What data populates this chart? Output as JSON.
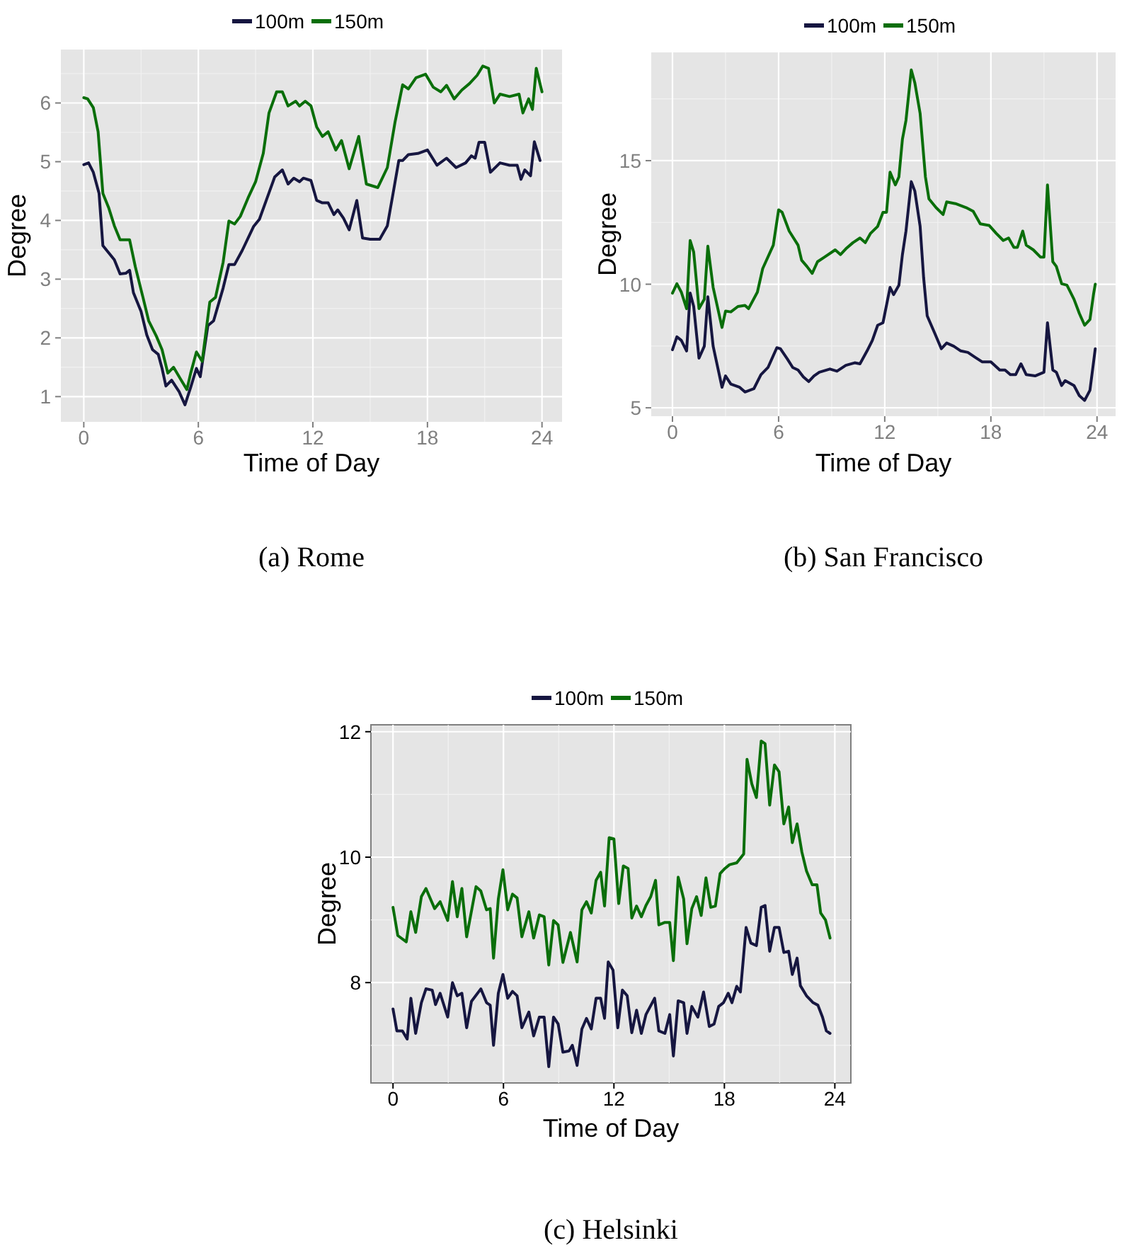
{
  "chart_data": [
    {
      "type": "line",
      "xlabel": "Time of Day",
      "ylabel": "Degree",
      "xlim": [
        -1.2,
        25.05
      ],
      "ylim": [
        0.57,
        6.91
      ],
      "xticks": [
        0,
        6,
        12,
        18,
        24
      ],
      "yticks": [
        1,
        2,
        3,
        4,
        5,
        6
      ],
      "grid": true,
      "legend": "top",
      "annotations": [
        "(a)  Rome"
      ],
      "series": [
        {
          "name": "100m",
          "color": "#161640",
          "x": [
            0,
            0.25,
            0.5,
            0.8,
            1,
            1.3,
            1.6,
            1.9,
            2.2,
            2.4,
            2.6,
            3,
            3.3,
            3.6,
            3.9,
            4.1,
            4.3,
            4.6,
            5,
            5.3,
            5.6,
            5.9,
            6.1,
            6.5,
            6.8,
            7.3,
            7.6,
            7.9,
            8.3,
            8.9,
            9.2,
            9.6,
            10,
            10.4,
            10.7,
            11,
            11.3,
            11.5,
            11.9,
            12.2,
            12.5,
            12.8,
            13.1,
            13.3,
            13.6,
            13.9,
            14.3,
            14.6,
            15,
            15.5,
            15.9,
            16.2,
            16.5,
            16.7,
            17,
            17.5,
            18,
            18.5,
            19,
            19.5,
            20,
            20.3,
            20.5,
            20.7,
            21,
            21.3,
            21.8,
            22.3,
            22.7,
            22.9,
            23.1,
            23.4,
            23.6,
            23.9
          ],
          "values": [
            4.95,
            4.98,
            4.82,
            4.46,
            3.57,
            3.45,
            3.33,
            3.09,
            3.1,
            3.15,
            2.77,
            2.45,
            2.05,
            1.8,
            1.72,
            1.48,
            1.18,
            1.28,
            1.08,
            0.86,
            1.16,
            1.48,
            1.34,
            2.21,
            2.29,
            2.85,
            3.25,
            3.25,
            3.49,
            3.9,
            4.02,
            4.38,
            4.74,
            4.86,
            4.62,
            4.72,
            4.66,
            4.72,
            4.68,
            4.34,
            4.3,
            4.3,
            4.1,
            4.18,
            4.04,
            3.84,
            4.34,
            3.7,
            3.68,
            3.68,
            3.91,
            4.46,
            5.02,
            5.02,
            5.12,
            5.14,
            5.2,
            4.94,
            5.06,
            4.9,
            4.98,
            5.1,
            5.06,
            5.33,
            5.33,
            4.82,
            4.98,
            4.94,
            4.94,
            4.7,
            4.86,
            4.76,
            5.34,
            5.02
          ]
        },
        {
          "name": "150m",
          "color": "#0a6e0a",
          "x": [
            0,
            0.2,
            0.5,
            0.75,
            1,
            1.3,
            1.6,
            1.9,
            2.4,
            2.7,
            3.1,
            3.4,
            3.8,
            4.1,
            4.4,
            4.7,
            5.1,
            5.4,
            5.6,
            5.9,
            6.2,
            6.6,
            6.9,
            7.3,
            7.6,
            7.9,
            8.2,
            8.6,
            9,
            9.4,
            9.7,
            10.1,
            10.4,
            10.7,
            11.1,
            11.3,
            11.6,
            11.9,
            12.2,
            12.5,
            12.8,
            13.2,
            13.5,
            13.9,
            14.4,
            14.8,
            15.4,
            15.9,
            16.3,
            16.7,
            17,
            17.4,
            17.9,
            18.3,
            18.7,
            19,
            19.4,
            19.8,
            20.2,
            20.6,
            20.9,
            21.2,
            21.5,
            21.8,
            22.3,
            22.8,
            23,
            23.3,
            23.5,
            23.7,
            24
          ],
          "values": [
            6.09,
            6.07,
            5.92,
            5.51,
            4.46,
            4.22,
            3.91,
            3.67,
            3.67,
            3.21,
            2.69,
            2.29,
            2.03,
            1.8,
            1.4,
            1.5,
            1.28,
            1.12,
            1.4,
            1.76,
            1.6,
            2.61,
            2.69,
            3.29,
            3.99,
            3.94,
            4.07,
            4.38,
            4.66,
            5.14,
            5.83,
            6.19,
            6.19,
            5.95,
            6.03,
            5.95,
            6.03,
            5.95,
            5.59,
            5.43,
            5.51,
            5.2,
            5.36,
            4.88,
            5.43,
            4.62,
            4.56,
            4.9,
            5.67,
            6.31,
            6.24,
            6.43,
            6.49,
            6.27,
            6.19,
            6.3,
            6.07,
            6.22,
            6.33,
            6.47,
            6.63,
            6.59,
            6.0,
            6.15,
            6.11,
            6.15,
            5.83,
            6.07,
            5.89,
            6.59,
            6.19
          ]
        }
      ]
    },
    {
      "type": "line",
      "xlabel": "Time of Day",
      "ylabel": "Degree",
      "xlim": [
        -1.2,
        25.05
      ],
      "ylim": [
        4.66,
        19.38
      ],
      "xticks": [
        0,
        6,
        12,
        18,
        24
      ],
      "yticks": [
        5,
        10,
        15
      ],
      "grid": true,
      "legend": "top",
      "annotations": [
        "(b)  San Francisco"
      ],
      "series": [
        {
          "name": "100m",
          "color": "#161640",
          "x": [
            0,
            0.25,
            0.5,
            0.8,
            1,
            1.2,
            1.5,
            1.8,
            2,
            2.3,
            2.8,
            3,
            3.3,
            3.8,
            4.1,
            4.6,
            5,
            5.4,
            5.9,
            6.1,
            6.5,
            6.8,
            7.1,
            7.4,
            7.7,
            8,
            8.3,
            8.9,
            9.3,
            9.8,
            10.3,
            10.6,
            11,
            11.3,
            11.6,
            11.9,
            12.3,
            12.5,
            12.8,
            13,
            13.2,
            13.5,
            13.7,
            14,
            14.2,
            14.4,
            14.8,
            15.2,
            15.5,
            15.9,
            16.3,
            16.7,
            17.1,
            17.5,
            18,
            18.5,
            18.8,
            19.1,
            19.4,
            19.7,
            20,
            20.5,
            21,
            21.2,
            21.5,
            21.7,
            22,
            22.2,
            22.7,
            23,
            23.3,
            23.6,
            23.8,
            23.9
          ],
          "values": [
            7.35,
            7.87,
            7.73,
            7.3,
            9.64,
            9.1,
            7.01,
            7.49,
            9.49,
            7.49,
            5.83,
            6.29,
            5.96,
            5.83,
            5.64,
            5.77,
            6.34,
            6.63,
            7.43,
            7.39,
            6.97,
            6.63,
            6.53,
            6.25,
            6.06,
            6.29,
            6.44,
            6.57,
            6.48,
            6.72,
            6.82,
            6.78,
            7.3,
            7.73,
            8.34,
            8.44,
            9.87,
            9.58,
            9.96,
            11.2,
            12.15,
            14.15,
            13.77,
            12.34,
            10.25,
            8.72,
            8.06,
            7.39,
            7.62,
            7.49,
            7.3,
            7.24,
            7.05,
            6.86,
            6.86,
            6.53,
            6.53,
            6.34,
            6.34,
            6.78,
            6.34,
            6.29,
            6.44,
            8.44,
            6.53,
            6.44,
            5.9,
            6.1,
            5.9,
            5.49,
            5.3,
            5.71,
            6.82,
            7.39
          ]
        },
        {
          "name": "150m",
          "color": "#0a6e0a",
          "x": [
            0,
            0.25,
            0.5,
            0.8,
            1,
            1.2,
            1.5,
            1.8,
            2,
            2.3,
            2.8,
            3,
            3.3,
            3.7,
            4.1,
            4.3,
            4.8,
            5.1,
            5.7,
            6,
            6.2,
            6.6,
            7.1,
            7.3,
            7.6,
            7.9,
            8.2,
            8.6,
            9.2,
            9.5,
            9.8,
            10.2,
            10.6,
            10.9,
            11.2,
            11.6,
            11.9,
            12.1,
            12.3,
            12.6,
            12.8,
            13,
            13.2,
            13.5,
            13.7,
            14,
            14.3,
            14.5,
            14.9,
            15.3,
            15.5,
            16,
            16.6,
            17,
            17.4,
            17.9,
            18.3,
            18.7,
            19,
            19.3,
            19.5,
            19.8,
            20,
            20.4,
            20.8,
            21,
            21.2,
            21.5,
            21.7,
            22,
            22.3,
            22.7,
            23,
            23.3,
            23.6,
            23.8,
            23.9
          ],
          "values": [
            9.64,
            10.02,
            9.68,
            9.01,
            11.77,
            11.3,
            9.01,
            9.39,
            11.54,
            9.87,
            8.25,
            8.91,
            8.88,
            9.1,
            9.14,
            9.01,
            9.68,
            10.63,
            11.58,
            13.01,
            12.91,
            12.15,
            11.58,
            10.97,
            10.72,
            10.44,
            10.91,
            11.1,
            11.39,
            11.2,
            11.43,
            11.68,
            11.87,
            11.68,
            12.06,
            12.34,
            12.91,
            12.91,
            14.53,
            14.02,
            14.34,
            15.87,
            16.63,
            18.67,
            18.15,
            16.91,
            14.34,
            13.45,
            13.1,
            12.82,
            13.33,
            13.26,
            13.1,
            12.95,
            12.44,
            12.38,
            12.06,
            11.77,
            11.87,
            11.49,
            11.49,
            12.15,
            11.58,
            11.39,
            11.1,
            11.1,
            14.02,
            10.91,
            10.72,
            10.02,
            9.96,
            9.39,
            8.82,
            8.34,
            8.57,
            9.58,
            10.0
          ]
        }
      ]
    },
    {
      "type": "line",
      "xlabel": "Time of Day",
      "ylabel": "Degree",
      "xlim": [
        -1.2,
        24.87
      ],
      "ylim": [
        6.4,
        12.11
      ],
      "xticks": [
        0,
        6,
        12,
        18,
        24
      ],
      "yticks": [
        8,
        10,
        12
      ],
      "grid": true,
      "legend": "top",
      "annotations": [
        "(c)  Helsinki"
      ],
      "series": [
        {
          "name": "100m",
          "color": "#161640",
          "x": [
            0,
            0.21,
            0.51,
            0.77,
            0.97,
            1.23,
            1.54,
            1.79,
            2.13,
            2.31,
            2.56,
            2.97,
            3.23,
            3.49,
            3.74,
            4.0,
            4.26,
            4.77,
            5.08,
            5.28,
            5.46,
            5.72,
            5.97,
            6.23,
            6.49,
            6.74,
            7.0,
            7.38,
            7.64,
            7.95,
            8.21,
            8.46,
            8.72,
            8.97,
            9.23,
            9.56,
            9.74,
            10.0,
            10.26,
            10.51,
            10.77,
            11.03,
            11.28,
            11.49,
            11.69,
            11.95,
            12.21,
            12.46,
            12.72,
            12.97,
            13.23,
            13.49,
            13.74,
            14.21,
            14.44,
            14.77,
            15.03,
            15.23,
            15.49,
            15.79,
            15.97,
            16.23,
            16.56,
            16.87,
            17.18,
            17.44,
            17.69,
            17.95,
            18.21,
            18.41,
            18.67,
            18.87,
            19.18,
            19.44,
            19.74,
            20.0,
            20.21,
            20.46,
            20.72,
            20.97,
            21.23,
            21.49,
            21.69,
            21.95,
            22.13,
            22.46,
            22.82,
            23.08,
            23.33,
            23.54,
            23.74
          ],
          "values": [
            7.58,
            7.23,
            7.23,
            7.1,
            7.75,
            7.19,
            7.68,
            7.9,
            7.88,
            7.65,
            7.83,
            7.45,
            8.0,
            7.79,
            7.83,
            7.28,
            7.7,
            7.9,
            7.68,
            7.64,
            7.0,
            7.83,
            8.13,
            7.75,
            7.86,
            7.79,
            7.28,
            7.53,
            7.15,
            7.45,
            7.45,
            6.66,
            7.45,
            7.34,
            6.89,
            6.91,
            7.0,
            6.68,
            7.26,
            7.43,
            7.26,
            7.75,
            7.75,
            7.43,
            8.33,
            8.2,
            7.28,
            7.88,
            7.79,
            7.2,
            7.56,
            7.19,
            7.49,
            7.75,
            7.23,
            7.19,
            7.49,
            6.83,
            7.71,
            7.68,
            7.19,
            7.62,
            7.45,
            7.85,
            7.3,
            7.34,
            7.62,
            7.68,
            7.83,
            7.68,
            7.94,
            7.85,
            8.88,
            8.63,
            8.59,
            9.2,
            9.23,
            8.5,
            8.88,
            8.88,
            8.48,
            8.5,
            8.13,
            8.39,
            7.95,
            7.79,
            7.68,
            7.64,
            7.45,
            7.23,
            7.19
          ]
        },
        {
          "name": "150m",
          "color": "#0a6e0a",
          "x": [
            0,
            0.26,
            0.72,
            0.97,
            1.23,
            1.54,
            1.79,
            2.26,
            2.56,
            2.97,
            3.23,
            3.49,
            3.74,
            4.0,
            4.51,
            4.77,
            5.08,
            5.28,
            5.46,
            5.72,
            5.97,
            6.23,
            6.49,
            6.74,
            7.0,
            7.38,
            7.64,
            7.95,
            8.21,
            8.46,
            8.72,
            8.97,
            9.23,
            9.64,
            10.0,
            10.26,
            10.51,
            10.77,
            11.03,
            11.28,
            11.49,
            11.74,
            12.0,
            12.26,
            12.51,
            12.77,
            12.97,
            13.23,
            13.49,
            13.74,
            14.0,
            14.26,
            14.44,
            14.77,
            15.03,
            15.23,
            15.49,
            15.79,
            15.97,
            16.23,
            16.49,
            16.74,
            17.0,
            17.26,
            17.51,
            17.77,
            18.03,
            18.28,
            18.67,
            19.05,
            19.23,
            19.49,
            19.74,
            20.0,
            20.21,
            20.46,
            20.72,
            20.97,
            21.23,
            21.49,
            21.69,
            21.95,
            22.21,
            22.46,
            22.77,
            23.03,
            23.23,
            23.49,
            23.74
          ],
          "values": [
            9.2,
            8.75,
            8.65,
            9.13,
            8.8,
            9.37,
            9.5,
            9.18,
            9.29,
            8.99,
            9.61,
            9.05,
            9.5,
            8.73,
            9.53,
            9.46,
            9.16,
            9.18,
            8.39,
            9.33,
            9.8,
            9.16,
            9.41,
            9.35,
            8.73,
            9.13,
            8.71,
            9.08,
            9.05,
            8.28,
            8.99,
            8.92,
            8.32,
            8.8,
            8.33,
            9.16,
            9.29,
            9.11,
            9.63,
            9.76,
            9.22,
            10.31,
            10.29,
            9.26,
            9.86,
            9.82,
            9.03,
            9.22,
            9.05,
            9.23,
            9.37,
            9.63,
            8.92,
            8.96,
            8.96,
            8.35,
            9.68,
            9.33,
            8.62,
            9.18,
            9.37,
            9.07,
            9.67,
            9.2,
            9.22,
            9.74,
            9.82,
            9.88,
            9.91,
            10.05,
            11.56,
            11.17,
            10.95,
            11.85,
            11.81,
            10.83,
            11.47,
            11.36,
            10.53,
            10.8,
            10.23,
            10.53,
            10.08,
            9.78,
            9.56,
            9.56,
            9.11,
            9.0,
            8.71
          ]
        }
      ]
    }
  ]
}
